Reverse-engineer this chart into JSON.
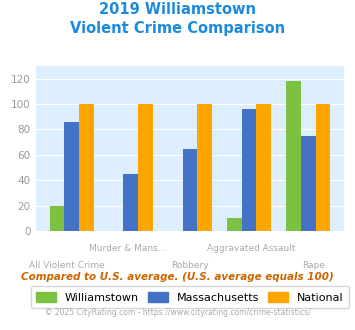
{
  "title_line1": "2019 Williamstown",
  "title_line2": "Violent Crime Comparison",
  "categories": [
    "All Violent Crime",
    "Murder & Mans...",
    "Robbery",
    "Aggravated Assault",
    "Rape"
  ],
  "williamstown": [
    20,
    0,
    0,
    10,
    118
  ],
  "massachusetts": [
    86,
    45,
    65,
    96,
    75
  ],
  "national": [
    100,
    100,
    100,
    100,
    100
  ],
  "color_williamstown": "#7dc142",
  "color_massachusetts": "#4472c4",
  "color_national": "#ffa500",
  "ylim": [
    0,
    130
  ],
  "yticks": [
    0,
    20,
    40,
    60,
    80,
    100,
    120
  ],
  "background_color": "#ddeeff",
  "title_color": "#1b8ae0",
  "subtitle_color": "#cc6600",
  "footer_color": "#aaaaaa",
  "footer_link_color": "#4472c4",
  "subtitle_note": "Compared to U.S. average. (U.S. average equals 100)",
  "footer": "© 2025 CityRating.com - https://www.cityrating.com/crime-statistics/",
  "legend_labels": [
    "Williamstown",
    "Massachusetts",
    "National"
  ],
  "bar_width": 0.25,
  "xlabels_top": [
    "",
    "Murder & Mans...",
    "",
    "Aggravated Assault",
    ""
  ],
  "xlabels_bottom": [
    "All Violent Crime",
    "",
    "Robbery",
    "",
    "Rape"
  ]
}
